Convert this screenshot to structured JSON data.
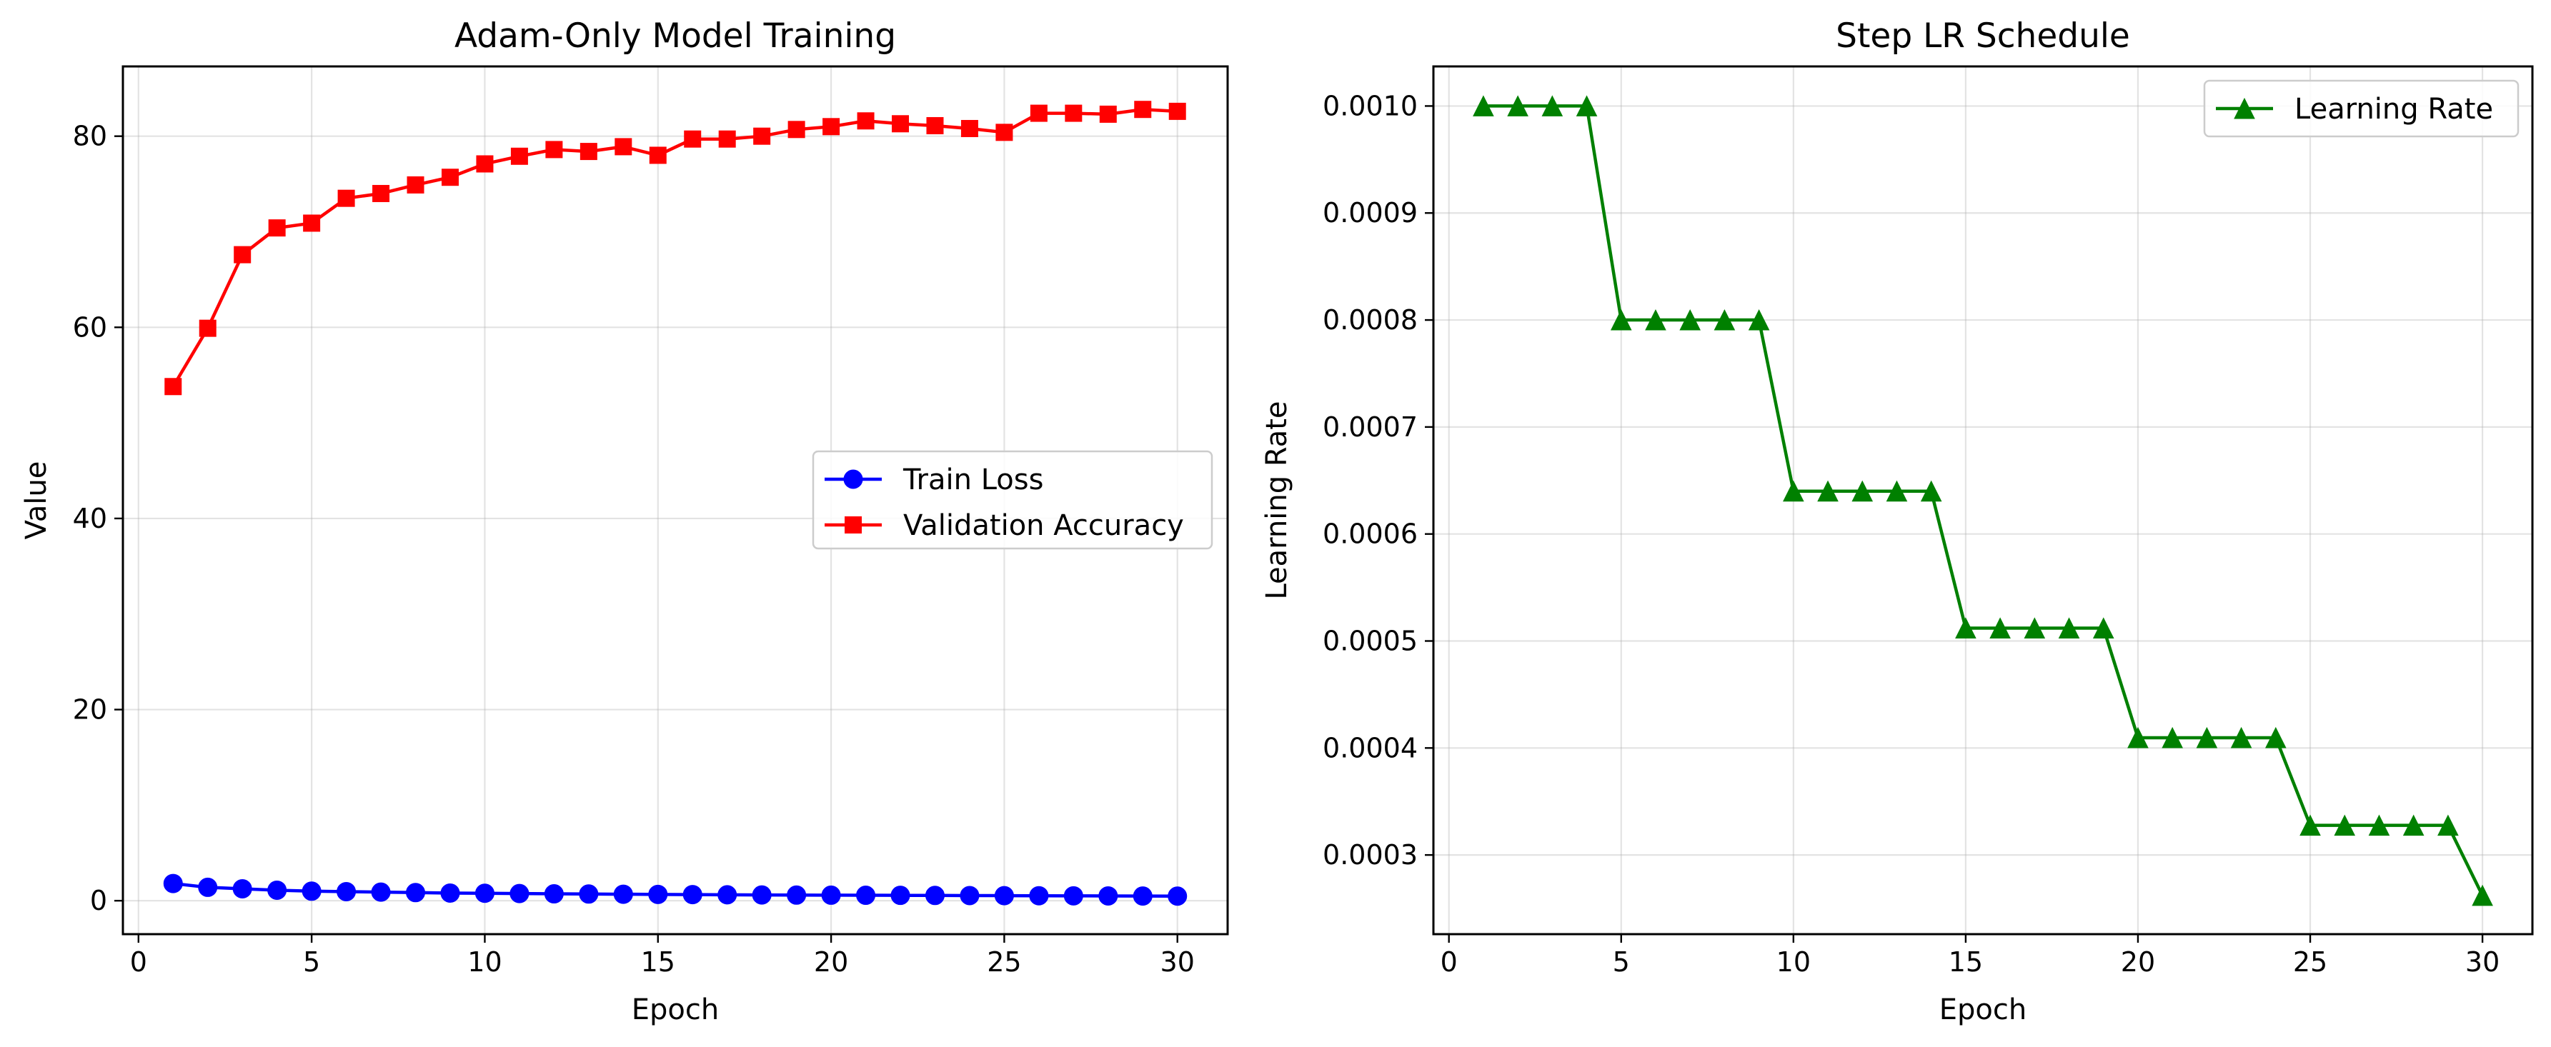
{
  "chart_data": [
    {
      "type": "line",
      "title": "Adam-Only Model Training",
      "xlabel": "Epoch",
      "ylabel": "Value",
      "xlim": [
        -0.45,
        31.45
      ],
      "ylim": [
        -3.5,
        87.3
      ],
      "x_ticks": [
        0,
        5,
        10,
        15,
        20,
        25,
        30
      ],
      "y_ticks": [
        0,
        20,
        40,
        60,
        80
      ],
      "y_tick_labels": [
        "0",
        "20",
        "40",
        "60",
        "80"
      ],
      "grid": true,
      "legend_position": "center-right",
      "x": [
        1,
        2,
        3,
        4,
        5,
        6,
        7,
        8,
        9,
        10,
        11,
        12,
        13,
        14,
        15,
        16,
        17,
        18,
        19,
        20,
        21,
        22,
        23,
        24,
        25,
        26,
        27,
        28,
        29,
        30
      ],
      "series": [
        {
          "name": "Train Loss",
          "color": "#0000ff",
          "marker": "circle",
          "values": [
            1.8,
            1.4,
            1.25,
            1.1,
            1.0,
            0.95,
            0.9,
            0.85,
            0.8,
            0.78,
            0.75,
            0.72,
            0.7,
            0.68,
            0.66,
            0.64,
            0.62,
            0.6,
            0.59,
            0.58,
            0.57,
            0.56,
            0.55,
            0.54,
            0.53,
            0.52,
            0.51,
            0.5,
            0.49,
            0.48
          ]
        },
        {
          "name": "Validation Accuracy",
          "color": "#ff0000",
          "marker": "square",
          "values": [
            53.8,
            59.9,
            67.6,
            70.4,
            70.9,
            73.5,
            74.0,
            74.9,
            75.7,
            77.1,
            77.9,
            78.6,
            78.4,
            78.9,
            78.0,
            79.7,
            79.7,
            80.0,
            80.7,
            81.0,
            81.6,
            81.3,
            81.1,
            80.8,
            80.4,
            82.4,
            82.4,
            82.3,
            82.8,
            82.6
          ]
        }
      ]
    },
    {
      "type": "line",
      "title": "Step LR Schedule",
      "xlabel": "Epoch",
      "ylabel": "Learning Rate",
      "xlim": [
        -0.45,
        31.45
      ],
      "ylim": [
        0.000226,
        0.001037
      ],
      "x_ticks": [
        0,
        5,
        10,
        15,
        20,
        25,
        30
      ],
      "y_ticks": [
        0.0003,
        0.0004,
        0.0005,
        0.0006,
        0.0007,
        0.0008,
        0.0009,
        0.001
      ],
      "y_tick_labels": [
        "0.0003",
        "0.0004",
        "0.0005",
        "0.0006",
        "0.0007",
        "0.0008",
        "0.0009",
        "0.0010"
      ],
      "grid": true,
      "legend_position": "top-right",
      "x": [
        1,
        2,
        3,
        4,
        5,
        6,
        7,
        8,
        9,
        10,
        11,
        12,
        13,
        14,
        15,
        16,
        17,
        18,
        19,
        20,
        21,
        22,
        23,
        24,
        25,
        26,
        27,
        28,
        29,
        30
      ],
      "series": [
        {
          "name": "Learning Rate",
          "color": "#008000",
          "marker": "triangle",
          "values": [
            0.001,
            0.001,
            0.001,
            0.001,
            0.0008,
            0.0008,
            0.0008,
            0.0008,
            0.0008,
            0.00064,
            0.00064,
            0.00064,
            0.00064,
            0.00064,
            0.000512,
            0.000512,
            0.000512,
            0.000512,
            0.000512,
            0.0004096,
            0.0004096,
            0.0004096,
            0.0004096,
            0.0004096,
            0.00032768,
            0.00032768,
            0.00032768,
            0.00032768,
            0.00032768,
            0.000262144
          ]
        }
      ]
    }
  ]
}
